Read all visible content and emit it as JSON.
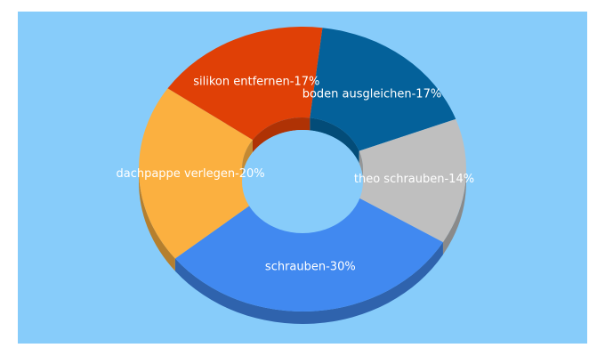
{
  "colors": {
    "panel_background": "#87ccfa"
  },
  "chart_data": {
    "type": "pie",
    "variant": "3d-donut",
    "title": "",
    "legend": "none",
    "slices": [
      {
        "label": "boden ausgleichen-17%",
        "value": 17,
        "color": "#04619a"
      },
      {
        "label": "theo schrauben-14%",
        "value": 14,
        "color": "#bfbfbf"
      },
      {
        "label": "schrauben-30%",
        "value": 30,
        "color": "#4189f0"
      },
      {
        "label": "dachpappe verlegen-20%",
        "value": 20,
        "color": "#fbb040"
      },
      {
        "label": "silikon entfernen-17%",
        "value": 17,
        "color": "#e04006"
      }
    ]
  }
}
